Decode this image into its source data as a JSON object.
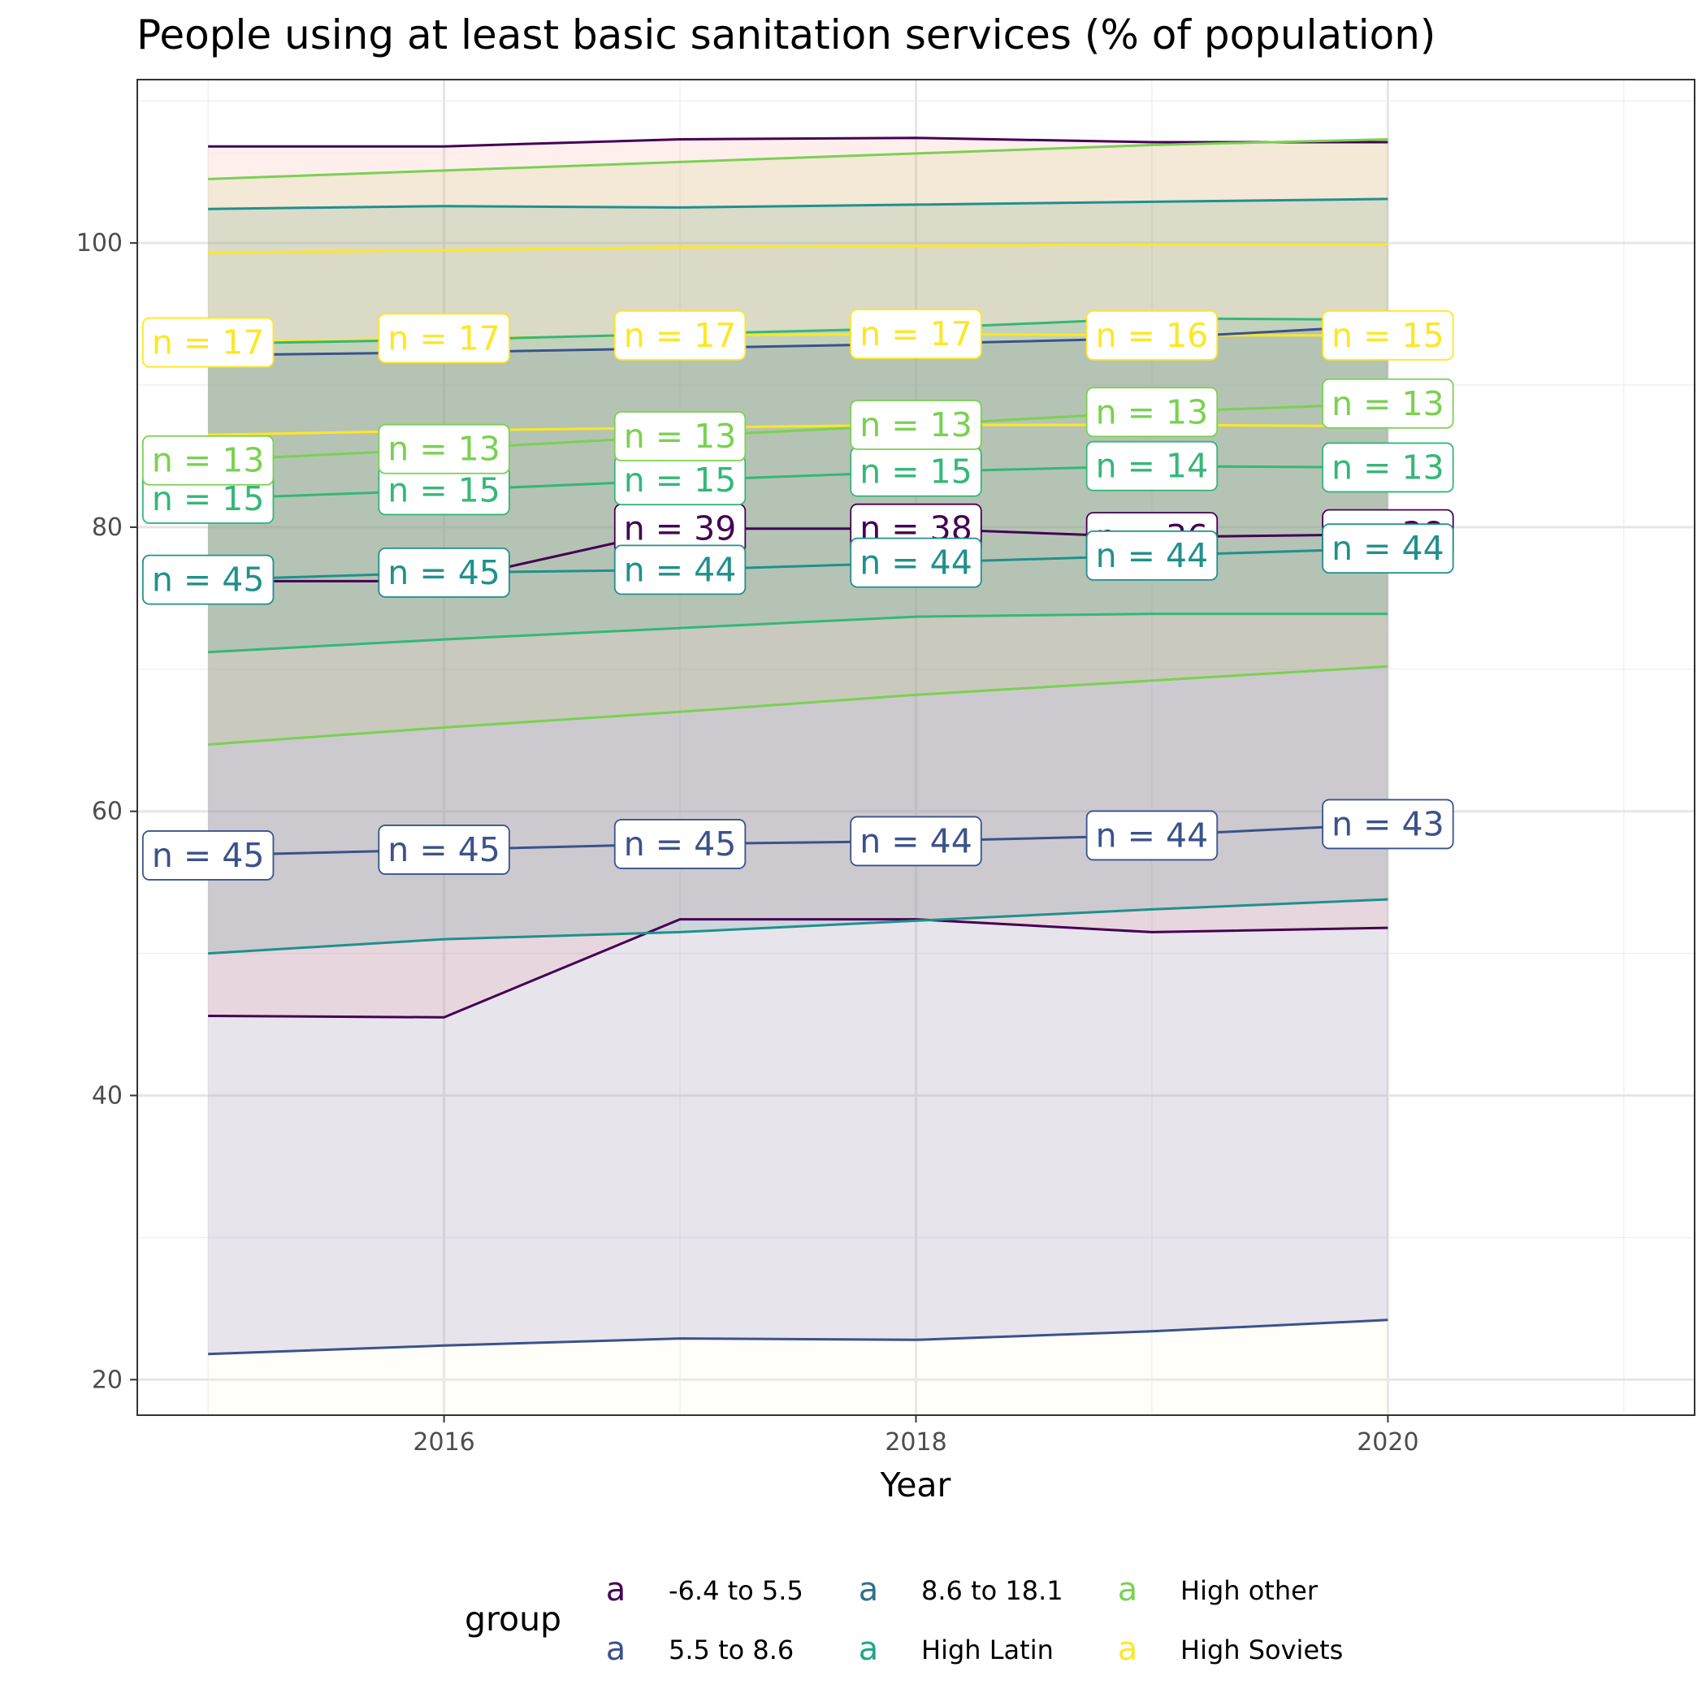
{
  "chart_data": {
    "type": "area",
    "title": "People using at least basic sanitation services (% of population)",
    "xlabel": "Year",
    "ylabel": "",
    "xlim": [
      2014.7,
      2021.3
    ],
    "ylim": [
      17.5,
      111.5
    ],
    "x_ticks": [
      2016,
      2018,
      2020
    ],
    "y_ticks": [
      20,
      40,
      60,
      80,
      100
    ],
    "grid": true,
    "legend": {
      "title": "group",
      "position": "bottom",
      "key_glyph": "a"
    },
    "x": [
      2015,
      2016,
      2017,
      2018,
      2019,
      2020
    ],
    "series": [
      {
        "name": "High Soviets",
        "color": "#FDE725",
        "upper": [
          99.3,
          99.5,
          99.7,
          99.8,
          99.9,
          99.9
        ],
        "mid": [
          93.0,
          93.3,
          93.5,
          93.6,
          93.5,
          93.5
        ],
        "mid_low": [
          86.5,
          86.8,
          87.0,
          87.2,
          87.2,
          87.1
        ],
        "lower": null,
        "fill": "#fdf6d8",
        "fill_lower": 17.5,
        "labels": [
          "n = 17",
          "n = 17",
          "n = 17",
          "n = 17",
          "n = 16",
          "n = 15"
        ]
      },
      {
        "name": "-6.4 to 5.5",
        "color": "#440154",
        "upper": [
          106.8,
          106.8,
          107.3,
          107.4,
          107.1,
          107.1
        ],
        "mid": [
          76.2,
          76.2,
          79.9,
          79.9,
          79.3,
          79.5
        ],
        "lower": [
          45.6,
          45.5,
          52.4,
          52.4,
          51.5,
          51.8
        ],
        "fill": "#ff9c8a",
        "labels": [
          "",
          "",
          "n = 39",
          "n = 38",
          "n = 36",
          "n = 38"
        ]
      },
      {
        "name": "5.5 to 8.6",
        "color": "#3B528B",
        "upper": [
          92.1,
          92.3,
          92.6,
          92.9,
          93.3,
          94.2
        ],
        "mid": [
          56.9,
          57.3,
          57.7,
          57.9,
          58.3,
          59.1
        ],
        "lower": [
          21.8,
          22.4,
          22.9,
          22.8,
          23.4,
          24.2
        ],
        "fill": "#6b5ea8",
        "labels": [
          "n = 45",
          "n = 45",
          "n = 45",
          "n = 44",
          "n = 44",
          "n = 43"
        ]
      },
      {
        "name": "8.6 to 18.1",
        "color": "#21908C",
        "upper": [
          102.4,
          102.6,
          102.5,
          102.7,
          102.9,
          103.1
        ],
        "mid": [
          76.3,
          76.8,
          77.0,
          77.5,
          78.0,
          78.5
        ],
        "lower": [
          50.0,
          51.0,
          51.5,
          52.3,
          53.1,
          53.8
        ],
        "fill": "#3d8f8a",
        "labels": [
          "n = 45",
          "n = 45",
          "n = 44",
          "n = 44",
          "n = 44",
          "n = 44"
        ]
      },
      {
        "name": "High Latin",
        "color": "#35B779",
        "upper": [
          92.9,
          93.2,
          93.6,
          94.0,
          94.7,
          94.6
        ],
        "mid": [
          82.0,
          82.6,
          83.3,
          83.9,
          84.3,
          84.2
        ],
        "lower": [
          71.2,
          72.1,
          72.9,
          73.7,
          73.9,
          73.9
        ],
        "fill": "#35a08a",
        "labels": [
          "n = 15",
          "n = 15",
          "n = 15",
          "n = 15",
          "n = 14",
          "n = 13"
        ]
      },
      {
        "name": "High other",
        "color": "#7AD151",
        "upper": [
          104.5,
          105.1,
          105.7,
          106.3,
          106.9,
          107.3
        ],
        "mid": [
          84.7,
          85.5,
          86.4,
          87.2,
          88.1,
          88.7
        ],
        "lower": [
          64.7,
          65.9,
          67.0,
          68.2,
          69.2,
          70.2
        ],
        "fill": "#b8c46a",
        "labels": [
          "n = 13",
          "n = 13",
          "n = 13",
          "n = 13",
          "n = 13",
          "n = 13"
        ]
      }
    ],
    "legend_entries": [
      "-6.4 to 5.5",
      "5.5 to 8.6",
      "8.6 to 18.1",
      "High Latin",
      "High other",
      "High Soviets"
    ],
    "legend_colors": [
      "#440154",
      "#3B528B",
      "#2D708E",
      "#21A585",
      "#7AD151",
      "#FDE725"
    ]
  }
}
